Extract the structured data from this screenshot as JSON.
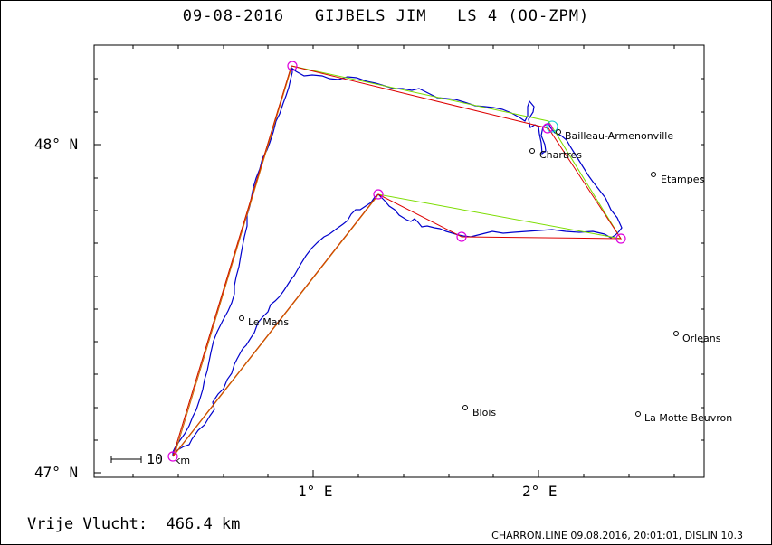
{
  "title": "09-08-2016   GIJBELS JIM   LS 4 (OO-ZPM)",
  "footer": {
    "distance": "Vrije Vlucht:  466.4 km",
    "credit": "CHARRON.LINE 09.08.2016, 20:01:01, DISLIN 10.3"
  },
  "axes": {
    "y_labels": [
      "48° N",
      "47° N"
    ],
    "x_labels": [
      "1° E",
      "2° E"
    ],
    "lon_range": [
      0.0,
      2.5
    ],
    "lat_range": [
      47.0,
      48.3
    ]
  },
  "scale": {
    "value": "10",
    "unit": "km"
  },
  "cities": [
    {
      "name": "Bailleau-Armenonville",
      "lon": 1.55,
      "lat": 48.05
    },
    {
      "name": "Chartres",
      "lon": 1.49,
      "lat": 47.98
    },
    {
      "name": "Etampes",
      "lon": 2.16,
      "lat": 47.91
    },
    {
      "name": "Le Mans",
      "lon": 0.2,
      "lat": 47.48
    },
    {
      "name": "Orleans",
      "lon": 1.91,
      "lat": 47.43
    },
    {
      "name": "Blois",
      "lon": 1.33,
      "lat": 47.2
    },
    {
      "name": "La Motte Beuvron",
      "lon": 2.03,
      "lat": 47.18
    }
  ],
  "colors": {
    "track": "#0000cc",
    "task": "#dd0000",
    "optimized": "#7cdd00",
    "leg": "#cc6600",
    "turnpoint": "#dd00dd",
    "start": "#00cccc"
  },
  "turnpoints": [
    {
      "lon": 0.0,
      "lat": 47.05
    },
    {
      "lon": 0.5,
      "lat": 48.24
    },
    {
      "lon": 1.57,
      "lat": 48.05
    },
    {
      "lon": 2.13,
      "lat": 47.71
    },
    {
      "lon": 1.22,
      "lat": 47.71
    },
    {
      "lon": 0.95,
      "lat": 47.84
    }
  ]
}
